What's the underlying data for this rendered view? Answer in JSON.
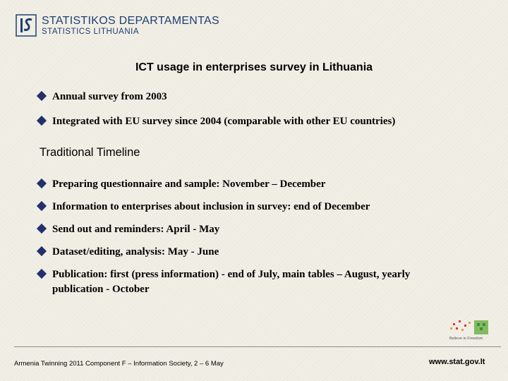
{
  "header": {
    "logo_title": "STATISTIKOS DEPARTAMENTAS",
    "logo_subtitle": "STATISTICS LITHUANIA"
  },
  "slide": {
    "title": "ICT usage in enterprises survey in Lithuania",
    "intro_bullets": [
      "Annual survey from 2003",
      "Integrated with EU survey since 2004 (comparable with other EU countries)"
    ],
    "section_heading": "Traditional Timeline",
    "timeline_bullets": [
      "Preparing questionnaire and sample: November – December",
      "Information to enterprises about inclusion in survey: end of December",
      "Send out and reminders: April - May",
      "Dataset/editing, analysis: May - June",
      "Publication: first (press information) - end of July, main tables – August, yearly publication - October"
    ]
  },
  "footer": {
    "left_text": "Armenia Twinning 2011 Component F – Information Society, 2 – 6 May",
    "right_text": "www.stat.gov.lt",
    "badge_text": "Believe in Freedom"
  },
  "colors": {
    "accent": "#24306b",
    "logo": "#1d3f73"
  }
}
